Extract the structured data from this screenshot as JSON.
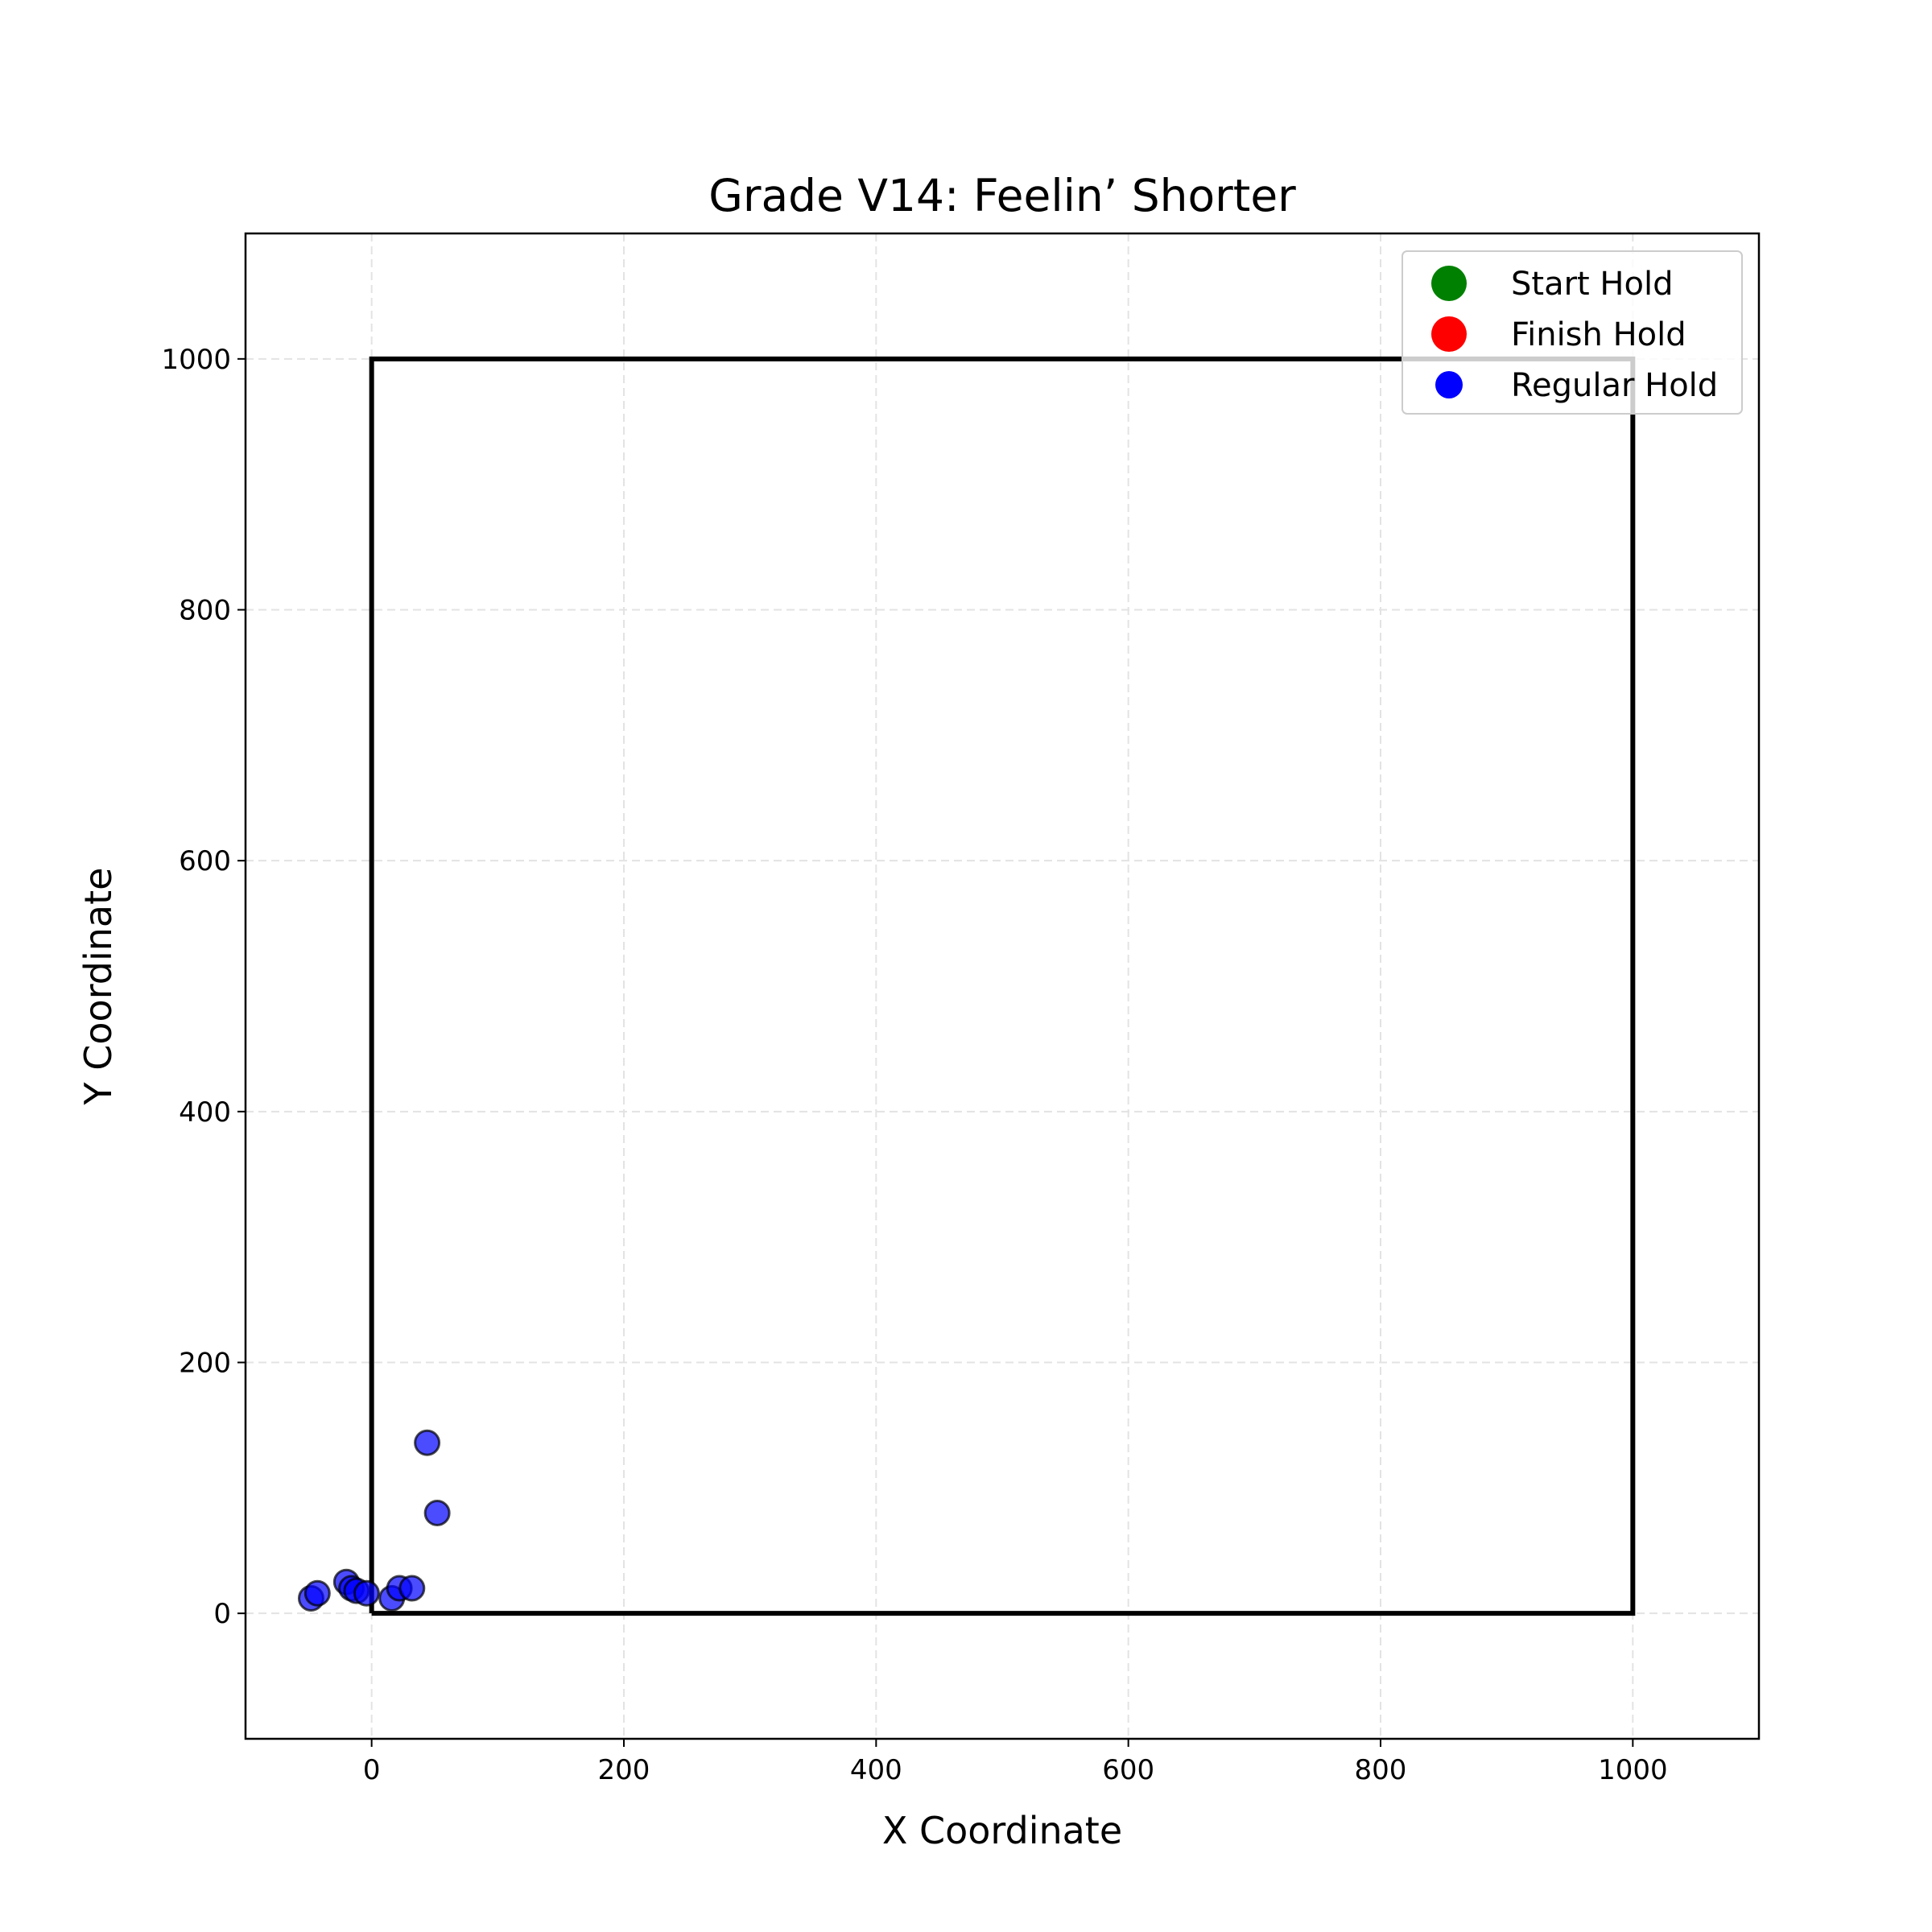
{
  "chart_data": {
    "type": "scatter",
    "title": "Grade V14: Feelin’ Shorter",
    "xlabel": "X Coordinate",
    "ylabel": "Y Coordinate",
    "xlim": [
      -100,
      1100
    ],
    "ylim": [
      -100,
      1100
    ],
    "xticks": [
      0,
      200,
      400,
      600,
      800,
      1000
    ],
    "yticks": [
      0,
      200,
      400,
      600,
      800,
      1000
    ],
    "grid": true,
    "legend_position": "top-right",
    "wall_boundary": [
      [
        0,
        0
      ],
      [
        1000,
        0
      ],
      [
        1000,
        1000
      ],
      [
        0,
        1000
      ],
      [
        0,
        0
      ]
    ],
    "series": [
      {
        "name": "Start Hold",
        "color": "#008000",
        "points": []
      },
      {
        "name": "Finish Hold",
        "color": "#ff0000",
        "points": []
      },
      {
        "name": "Regular Hold",
        "color": "#0000ff",
        "points": [
          [
            44,
            136
          ],
          [
            52,
            80
          ],
          [
            -20,
            25
          ],
          [
            -16,
            20
          ],
          [
            -12,
            18
          ],
          [
            -4,
            16
          ],
          [
            -48,
            12
          ],
          [
            -43,
            16
          ],
          [
            16,
            12
          ],
          [
            22,
            20
          ],
          [
            32,
            20
          ]
        ]
      }
    ]
  }
}
